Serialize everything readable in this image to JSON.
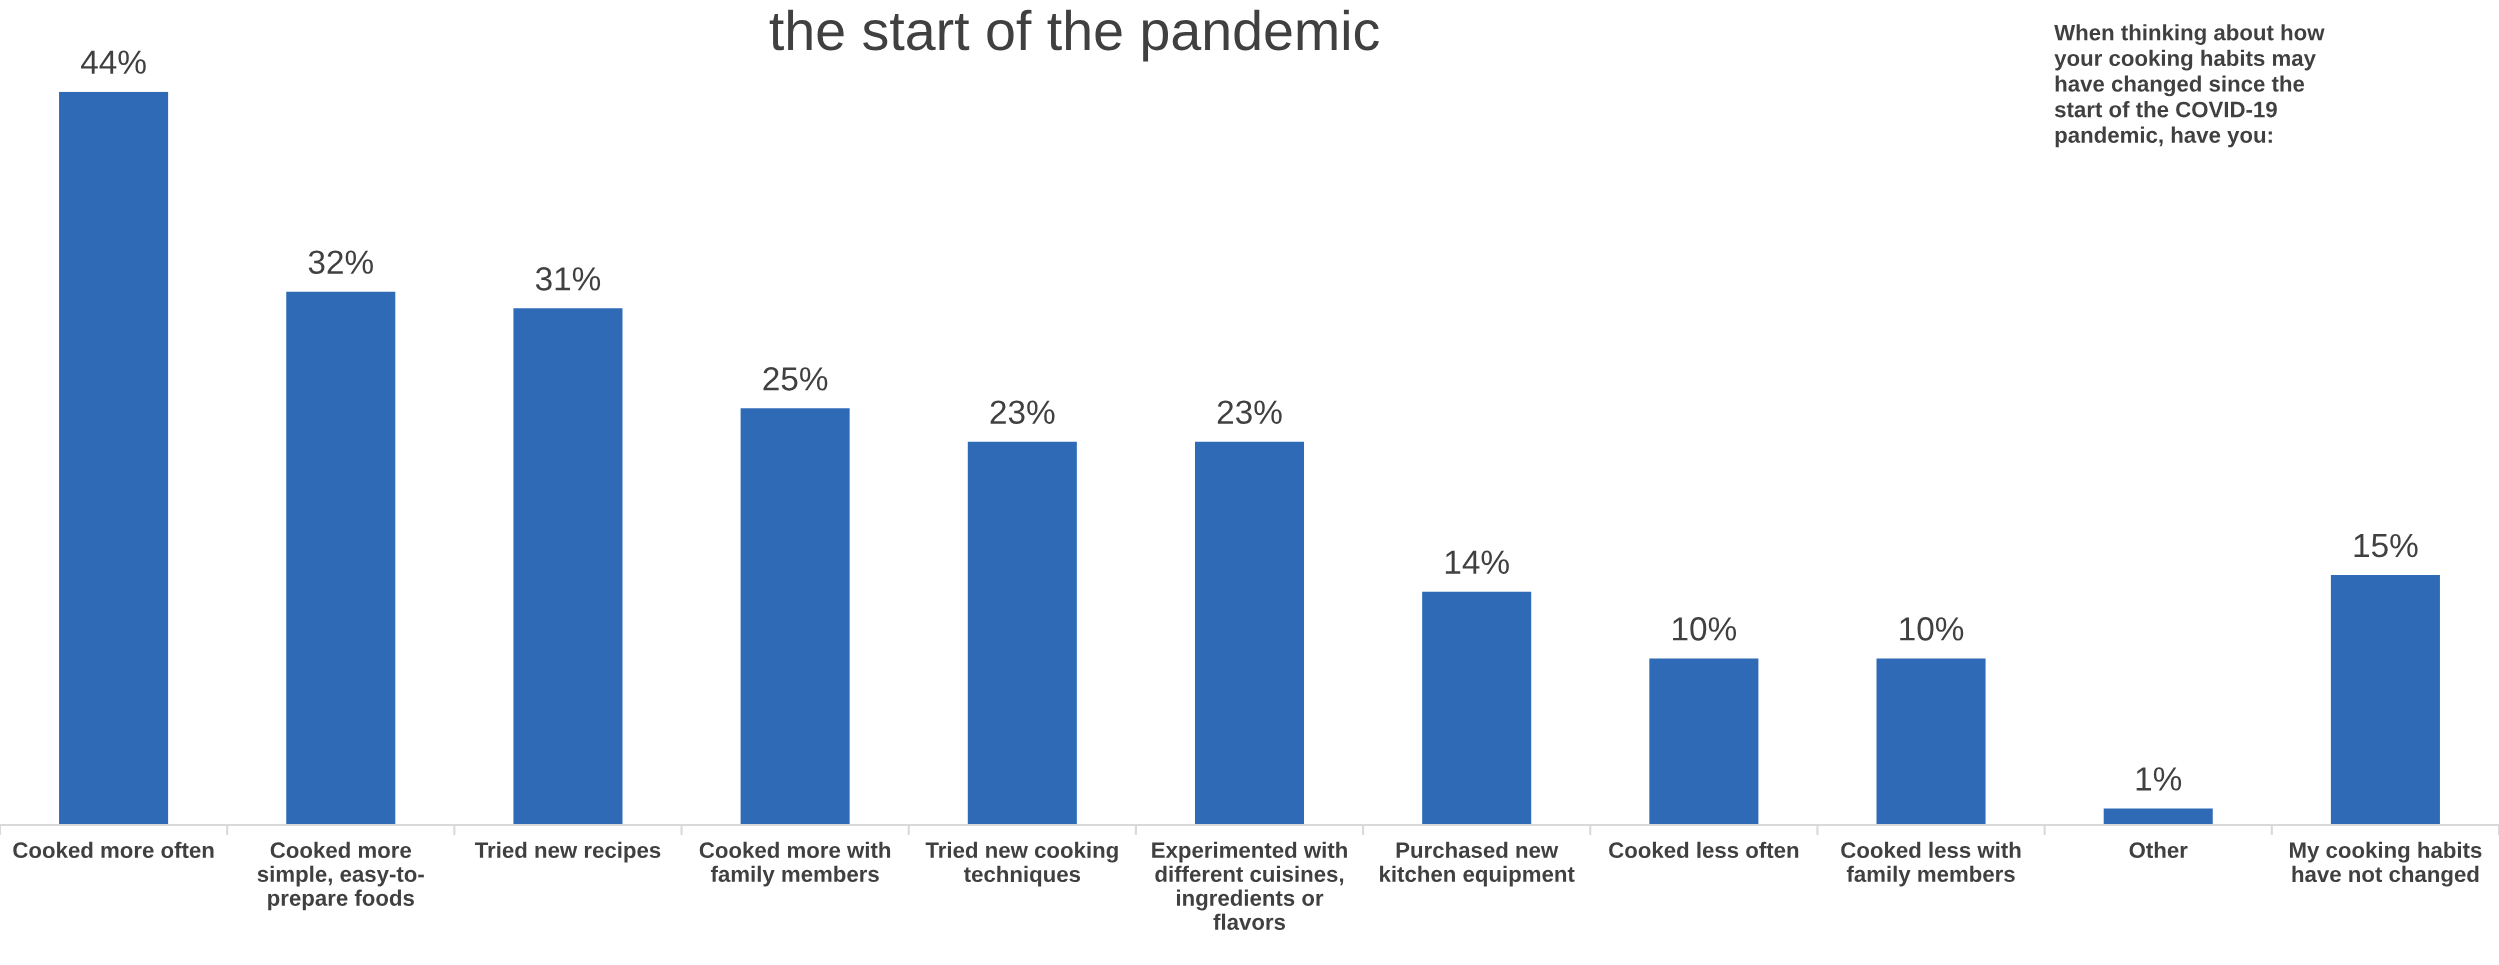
{
  "chart_data": {
    "type": "bar",
    "title": "the start of the pandemic",
    "categories": [
      "Cooked more often",
      "Cooked more\nsimple, easy-to-\nprepare foods",
      "Tried new recipes",
      "Cooked more with\nfamily members",
      "Tried new cooking\ntechniques",
      "Experimented with\ndifferent cuisines,\ningredients or\nflavors",
      "Purchased new\nkitchen equipment",
      "Cooked less often",
      "Cooked less with\nfamily members",
      "Other",
      "My cooking habits\nhave not changed"
    ],
    "values": [
      44,
      32,
      31,
      25,
      23,
      23,
      14,
      10,
      10,
      1,
      15
    ],
    "value_labels": [
      "44%",
      "32%",
      "31%",
      "25%",
      "23%",
      "23%",
      "14%",
      "10%",
      "10%",
      "1%",
      "15%"
    ],
    "color": "#2e6ab5",
    "annotations": [
      "When thinking about how\nyour cooking habits may\nhave changed since the\nstart of the COVID-19\npandemic, have you:"
    ],
    "grid": false,
    "legend": false
  }
}
